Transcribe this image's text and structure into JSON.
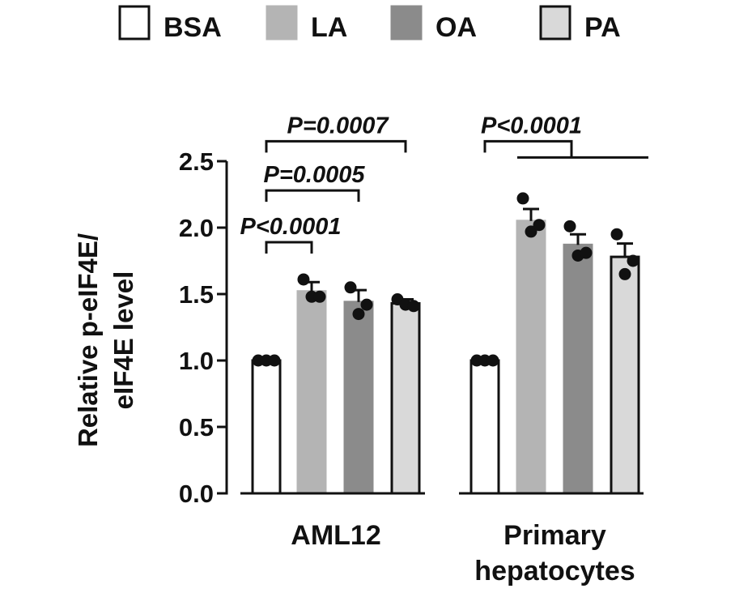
{
  "chart_data": {
    "type": "bar",
    "title": "",
    "xlabel": "",
    "ylabel_lines": [
      "Relative p-eIF4E/",
      "eIF4E level"
    ],
    "ylim": [
      0,
      2.5
    ],
    "yticks": [
      0.0,
      0.5,
      1.0,
      1.5,
      2.0,
      2.5
    ],
    "ytick_labels": [
      "0.0",
      "0.5",
      "1.0",
      "1.5",
      "2.0",
      "2.5"
    ],
    "grid": false,
    "legend_position": "top",
    "groups": [
      {
        "label_lines": [
          "AML12"
        ]
      },
      {
        "label_lines": [
          "Primary",
          "hepatocytes"
        ]
      }
    ],
    "series": [
      {
        "name": "BSA",
        "color": "#ffffff",
        "values": [
          1.0,
          1.0
        ],
        "errors": [
          0.0,
          0.0
        ],
        "points": [
          [
            1.0,
            1.0,
            1.0
          ],
          [
            1.0,
            1.0,
            1.0
          ]
        ]
      },
      {
        "name": "LA",
        "color": "#b4b4b4",
        "values": [
          1.52,
          2.05
        ],
        "errors": [
          0.07,
          0.09
        ],
        "points": [
          [
            1.61,
            1.48,
            1.48
          ],
          [
            2.22,
            1.97,
            2.02
          ]
        ]
      },
      {
        "name": "OA",
        "color": "#8b8b8b",
        "values": [
          1.44,
          1.87
        ],
        "errors": [
          0.09,
          0.08
        ],
        "points": [
          [
            1.55,
            1.35,
            1.42
          ],
          [
            2.01,
            1.79,
            1.81
          ]
        ]
      },
      {
        "name": "PA",
        "color": "#d9d9d9",
        "values": [
          1.43,
          1.78
        ],
        "errors": [
          0.03,
          0.1
        ],
        "points": [
          [
            1.46,
            1.42,
            1.41
          ],
          [
            1.95,
            1.65,
            1.75
          ]
        ]
      }
    ],
    "annotations": [
      {
        "text": "P<0.0001",
        "group": 0,
        "from": "BSA",
        "to": "LA",
        "level": 1.89
      },
      {
        "text": "P=0.0005",
        "group": 0,
        "from": "BSA",
        "to": "OA",
        "level": 2.28
      },
      {
        "text": "P=0.0007",
        "group": 0,
        "from": "BSA",
        "to": "PA",
        "level": 2.65
      },
      {
        "text": "P<0.0001",
        "group": 1,
        "from": "BSA",
        "to": "LA,OA,PA",
        "level": 2.65
      }
    ]
  }
}
